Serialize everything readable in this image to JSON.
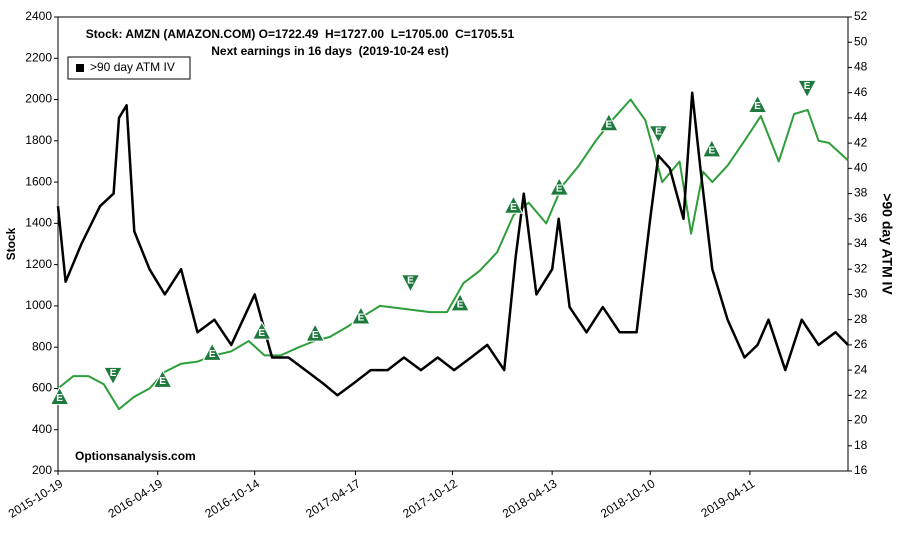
{
  "chart_data": {
    "type": "line",
    "title": "Stock: AMZN (AMAZON.COM) O=1722.49  H=1727.00  L=1705.00  C=1705.51",
    "subtitle": "Next earnings in 16 days  (2019-10-24 est)",
    "ylabel": "Stock",
    "y2label": ">90 day ATM IV",
    "annotation": "Optionsanalysis.com",
    "legend": "top-left",
    "xlim": [
      "2015-10-19",
      "2019-10-08"
    ],
    "xticks": [
      "2015-10-19",
      "2016-04-19",
      "2016-10-14",
      "2017-04-17",
      "2017-10-12",
      "2018-04-13",
      "2018-10-10",
      "2019-04-11"
    ],
    "ylim": [
      200,
      2400
    ],
    "yticks": [
      200,
      400,
      600,
      800,
      1000,
      1200,
      1400,
      1600,
      1800,
      2000,
      2200,
      2400
    ],
    "y2lim": [
      16,
      52
    ],
    "y2ticks": [
      16,
      18,
      20,
      22,
      24,
      26,
      28,
      30,
      32,
      34,
      36,
      38,
      40,
      42,
      44,
      46,
      48,
      50,
      52
    ],
    "series": [
      {
        "color": "#2e9e3a",
        "x": [
          "2015-10-19",
          "2015-11-16",
          "2015-12-14",
          "2016-01-11",
          "2016-02-08",
          "2016-03-07",
          "2016-04-04",
          "2016-05-02",
          "2016-06-01",
          "2016-07-01",
          "2016-08-01",
          "2016-09-01",
          "2016-10-03",
          "2016-11-01",
          "2016-12-01",
          "2017-01-03",
          "2017-02-01",
          "2017-03-01",
          "2017-04-03",
          "2017-05-01",
          "2017-06-01",
          "2017-07-03",
          "2017-08-01",
          "2017-09-01",
          "2017-10-02",
          "2017-11-01",
          "2017-12-01",
          "2018-01-02",
          "2018-02-01",
          "2018-03-01",
          "2018-04-02",
          "2018-05-01",
          "2018-06-01",
          "2018-07-02",
          "2018-08-01",
          "2018-09-04",
          "2018-10-01",
          "2018-11-01",
          "2018-12-03",
          "2018-12-24",
          "2019-01-15",
          "2019-02-01",
          "2019-03-01",
          "2019-04-01",
          "2019-05-01",
          "2019-06-03",
          "2019-07-01",
          "2019-07-26",
          "2019-08-15",
          "2019-09-03",
          "2019-10-08"
        ],
        "values": [
          600,
          660,
          660,
          620,
          500,
          560,
          600,
          680,
          720,
          730,
          760,
          780,
          830,
          760,
          760,
          800,
          830,
          850,
          900,
          950,
          1000,
          990,
          980,
          970,
          970,
          1110,
          1170,
          1260,
          1440,
          1500,
          1400,
          1580,
          1680,
          1800,
          1900,
          2000,
          1900,
          1600,
          1700,
          1350,
          1650,
          1600,
          1680,
          1800,
          1920,
          1700,
          1930,
          1950,
          1800,
          1790,
          1705
        ]
      },
      {
        "name": ">90 day ATM IV",
        "color": "#000000",
        "axis": "y2",
        "x": [
          "2015-10-19",
          "2015-11-02",
          "2015-12-01",
          "2016-01-04",
          "2016-01-29",
          "2016-02-08",
          "2016-02-22",
          "2016-03-07",
          "2016-04-04",
          "2016-05-02",
          "2016-06-01",
          "2016-07-01",
          "2016-08-01",
          "2016-09-01",
          "2016-10-14",
          "2016-11-15",
          "2016-12-15",
          "2017-01-15",
          "2017-02-15",
          "2017-03-15",
          "2017-04-15",
          "2017-05-15",
          "2017-06-15",
          "2017-07-15",
          "2017-08-15",
          "2017-09-15",
          "2017-10-15",
          "2017-11-15",
          "2017-12-15",
          "2018-01-15",
          "2018-02-05",
          "2018-02-20",
          "2018-03-15",
          "2018-04-13",
          "2018-04-25",
          "2018-05-15",
          "2018-06-15",
          "2018-07-15",
          "2018-08-15",
          "2018-09-15",
          "2018-10-10",
          "2018-10-25",
          "2018-11-15",
          "2018-12-10",
          "2018-12-26",
          "2019-01-10",
          "2019-02-01",
          "2019-03-01",
          "2019-04-01",
          "2019-04-25",
          "2019-05-15",
          "2019-06-15",
          "2019-07-15",
          "2019-08-15",
          "2019-09-15",
          "2019-10-08"
        ],
        "values": [
          37,
          31,
          34,
          37,
          38,
          44,
          45,
          35,
          32,
          30,
          32,
          27,
          28,
          26,
          30,
          25,
          25,
          24,
          23,
          22,
          23,
          24,
          24,
          25,
          24,
          25,
          24,
          25,
          26,
          24,
          33,
          38,
          30,
          32,
          36,
          29,
          27,
          29,
          27,
          27,
          36,
          41,
          40,
          36,
          46,
          40,
          32,
          28,
          25,
          26,
          28,
          24,
          28,
          26,
          27,
          26
        ]
      }
    ],
    "earnings": {
      "label": "E",
      "x": [
        "2015-10-22",
        "2016-01-28",
        "2016-04-28",
        "2016-07-28",
        "2016-10-27",
        "2017-02-02",
        "2017-04-27",
        "2017-07-27",
        "2017-10-26",
        "2018-02-01",
        "2018-04-26",
        "2018-07-26",
        "2018-10-25",
        "2019-01-31",
        "2019-04-25",
        "2019-07-25"
      ],
      "values": [
        556,
        668,
        639,
        770,
        873,
        863,
        946,
        1117,
        1010,
        1483,
        1571,
        1883,
        1839,
        1756,
        1971,
        2059
      ],
      "direction": [
        "up",
        "down",
        "up",
        "up",
        "up",
        "up",
        "up",
        "down",
        "up",
        "up",
        "up",
        "up",
        "down",
        "up",
        "up",
        "down"
      ],
      "color": "#1e7a3c"
    }
  }
}
